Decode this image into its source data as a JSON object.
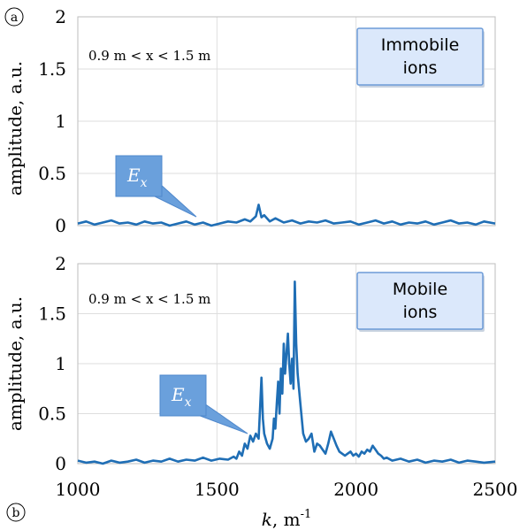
{
  "chart_data": [
    {
      "type": "line",
      "panel_label": "a",
      "range_text": "0.9 m < x < 1.5 m",
      "box_text": [
        "Immobile",
        "ions"
      ],
      "annotation": "E",
      "annotation_sub": "x",
      "ylabel": "amplitude, a.u.",
      "xlim": [
        1000,
        2500
      ],
      "ylim": [
        0,
        2
      ],
      "x_ticks": [
        1000,
        1500,
        2000,
        2500
      ],
      "y_ticks": [
        "0",
        "0.5",
        "1",
        "1.5",
        "2"
      ],
      "grid": true,
      "color": "#1f6eb5",
      "series": [
        {
          "x": [
            1000,
            1030,
            1060,
            1090,
            1120,
            1150,
            1180,
            1210,
            1240,
            1270,
            1300,
            1330,
            1360,
            1390,
            1420,
            1450,
            1480,
            1510,
            1540,
            1570,
            1600,
            1620,
            1640,
            1650,
            1660,
            1670,
            1690,
            1710,
            1740,
            1770,
            1800,
            1830,
            1860,
            1890,
            1920,
            1950,
            1980,
            2010,
            2040,
            2070,
            2100,
            2130,
            2160,
            2190,
            2220,
            2250,
            2280,
            2310,
            2340,
            2370,
            2400,
            2430,
            2460,
            2500
          ],
          "y": [
            0.02,
            0.04,
            0.01,
            0.03,
            0.05,
            0.02,
            0.03,
            0.01,
            0.04,
            0.02,
            0.03,
            0.0,
            0.02,
            0.04,
            0.01,
            0.03,
            0.0,
            0.02,
            0.04,
            0.03,
            0.06,
            0.04,
            0.09,
            0.2,
            0.08,
            0.1,
            0.04,
            0.07,
            0.03,
            0.05,
            0.02,
            0.04,
            0.03,
            0.05,
            0.02,
            0.03,
            0.04,
            0.01,
            0.03,
            0.05,
            0.02,
            0.04,
            0.01,
            0.03,
            0.02,
            0.04,
            0.01,
            0.03,
            0.05,
            0.02,
            0.03,
            0.01,
            0.04,
            0.02
          ]
        }
      ]
    },
    {
      "type": "line",
      "panel_label": "b",
      "range_text": "0.9 m < x < 1.5 m",
      "box_text": [
        "Mobile",
        "ions"
      ],
      "annotation": "E",
      "annotation_sub": "x",
      "ylabel": "amplitude, a.u.",
      "xlabel": "k, m-1",
      "xlim": [
        1000,
        2500
      ],
      "ylim": [
        0,
        2
      ],
      "x_ticks": [
        1000,
        1500,
        2000,
        2500
      ],
      "y_ticks": [
        "0",
        "0.5",
        "1",
        "1.5",
        "2"
      ],
      "grid": true,
      "color": "#1f6eb5",
      "series": [
        {
          "x": [
            1000,
            1030,
            1060,
            1090,
            1120,
            1150,
            1180,
            1210,
            1240,
            1270,
            1300,
            1330,
            1360,
            1390,
            1420,
            1450,
            1480,
            1510,
            1540,
            1560,
            1570,
            1580,
            1590,
            1600,
            1610,
            1620,
            1630,
            1640,
            1650,
            1655,
            1660,
            1665,
            1670,
            1680,
            1690,
            1700,
            1705,
            1710,
            1715,
            1720,
            1725,
            1730,
            1735,
            1740,
            1745,
            1750,
            1755,
            1760,
            1765,
            1770,
            1775,
            1780,
            1785,
            1790,
            1800,
            1810,
            1820,
            1830,
            1840,
            1850,
            1860,
            1870,
            1880,
            1890,
            1900,
            1910,
            1920,
            1930,
            1940,
            1950,
            1960,
            1970,
            1980,
            1990,
            2000,
            2010,
            2020,
            2030,
            2040,
            2050,
            2060,
            2070,
            2080,
            2090,
            2100,
            2110,
            2130,
            2160,
            2190,
            2220,
            2250,
            2280,
            2310,
            2340,
            2370,
            2400,
            2430,
            2460,
            2500
          ],
          "y": [
            0.03,
            0.01,
            0.02,
            0.0,
            0.03,
            0.01,
            0.02,
            0.04,
            0.01,
            0.03,
            0.02,
            0.05,
            0.02,
            0.04,
            0.03,
            0.06,
            0.03,
            0.05,
            0.04,
            0.07,
            0.05,
            0.12,
            0.08,
            0.2,
            0.15,
            0.28,
            0.22,
            0.3,
            0.25,
            0.55,
            0.86,
            0.45,
            0.3,
            0.2,
            0.15,
            0.25,
            0.45,
            0.35,
            0.6,
            0.82,
            0.5,
            0.95,
            0.7,
            1.2,
            0.9,
            1.1,
            1.3,
            1.0,
            0.8,
            1.05,
            0.75,
            1.82,
            1.2,
            0.9,
            0.6,
            0.3,
            0.22,
            0.25,
            0.3,
            0.12,
            0.2,
            0.18,
            0.14,
            0.1,
            0.2,
            0.32,
            0.25,
            0.18,
            0.12,
            0.1,
            0.08,
            0.1,
            0.12,
            0.08,
            0.1,
            0.07,
            0.12,
            0.1,
            0.14,
            0.12,
            0.18,
            0.14,
            0.1,
            0.08,
            0.05,
            0.06,
            0.03,
            0.05,
            0.02,
            0.04,
            0.01,
            0.03,
            0.02,
            0.04,
            0.01,
            0.03,
            0.02,
            0.01,
            0.02
          ]
        }
      ]
    }
  ]
}
